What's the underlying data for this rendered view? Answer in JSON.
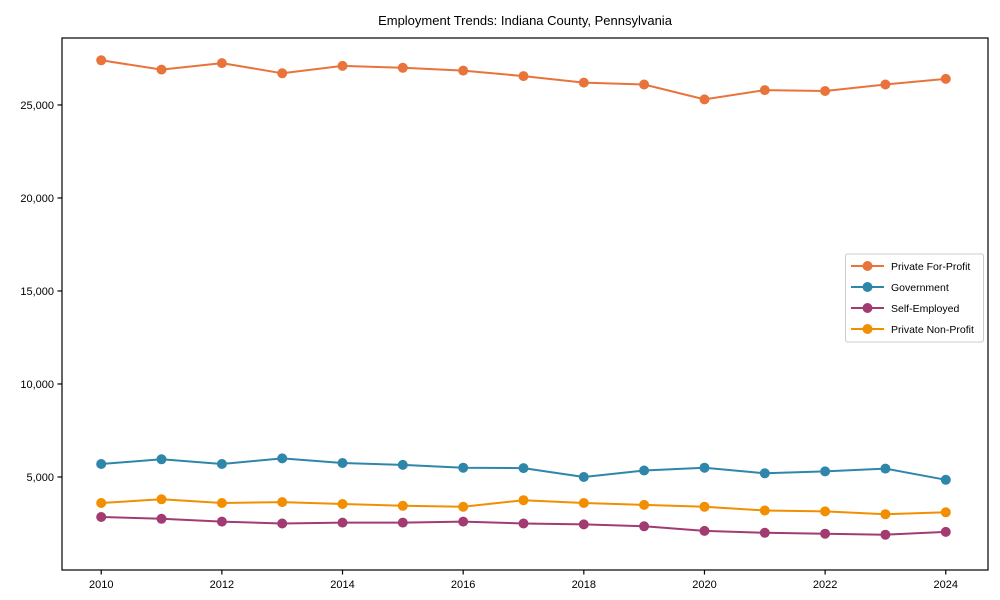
{
  "figure": {
    "background": "#ffffff",
    "spine_color": "#000000",
    "legend_border_color": "#cccccc",
    "legend_background": "#ffffff"
  },
  "chart_data": {
    "type": "line",
    "title": "Employment Trends: Indiana County, Pennsylvania",
    "xlabel": "",
    "ylabel": "",
    "x": [
      2010,
      2011,
      2012,
      2013,
      2014,
      2015,
      2016,
      2017,
      2018,
      2019,
      2020,
      2021,
      2022,
      2023,
      2024
    ],
    "series": [
      {
        "name": "Private For-Profit",
        "color": "#E8743B",
        "values": [
          27400,
          26900,
          27250,
          26700,
          27100,
          27000,
          26850,
          26550,
          26200,
          26100,
          25300,
          25800,
          25750,
          26100,
          26400
        ]
      },
      {
        "name": "Government",
        "color": "#2E86AB",
        "values": [
          5700,
          5950,
          5700,
          6000,
          5750,
          5650,
          5500,
          5480,
          5000,
          5350,
          5500,
          5200,
          5300,
          5450,
          4850
        ]
      },
      {
        "name": "Self-Employed",
        "color": "#A23B72",
        "values": [
          2850,
          2750,
          2600,
          2500,
          2550,
          2550,
          2600,
          2500,
          2450,
          2350,
          2100,
          2000,
          1950,
          1900,
          2050
        ]
      },
      {
        "name": "Private Non-Profit",
        "color": "#F18F01",
        "values": [
          3600,
          3800,
          3600,
          3650,
          3550,
          3450,
          3400,
          3750,
          3600,
          3500,
          3400,
          3200,
          3150,
          3000,
          3100
        ]
      }
    ],
    "xlim": [
      2009.35,
      2024.7
    ],
    "ylim": [
      0,
      28600
    ],
    "xticks": [
      2010,
      2012,
      2014,
      2016,
      2018,
      2020,
      2022,
      2024
    ],
    "xtick_labels": [
      "2010",
      "2012",
      "2014",
      "2016",
      "2018",
      "2020",
      "2022",
      "2024"
    ],
    "yticks": [
      5000,
      10000,
      15000,
      20000,
      25000
    ],
    "ytick_labels": [
      "5,000",
      "10,000",
      "15,000",
      "20,000",
      "25,000"
    ],
    "grid": false,
    "legend_position": "center right",
    "marker": "circle"
  }
}
